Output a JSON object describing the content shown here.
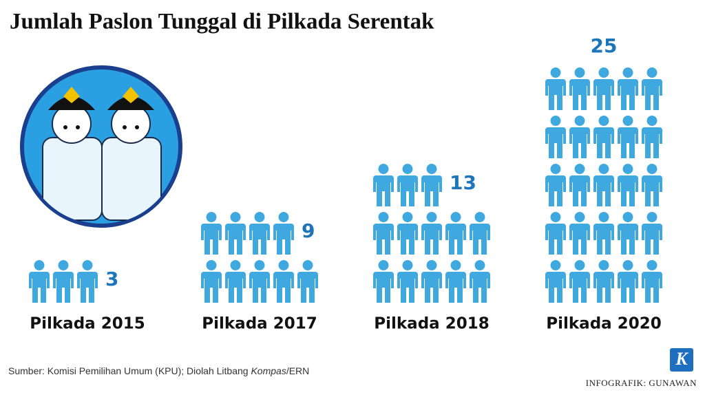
{
  "chart_data": {
    "type": "pictogram",
    "title": "Jumlah Paslon Tunggal di Pilkada Serentak",
    "categories": [
      "Pilkada 2015",
      "Pilkada 2017",
      "Pilkada 2018",
      "Pilkada 2020"
    ],
    "values": [
      3,
      9,
      13,
      25
    ],
    "color": "#3fa8df",
    "label_color": "#1c76b9",
    "icons_per_row": 5
  },
  "source": {
    "prefix": "Sumber: Komisi Pemilihan Umum (KPU); Diolah Litbang ",
    "publication": "Kompas",
    "suffix": "/ERN"
  },
  "credit": "INFOGRAFIK: GUNAWAN",
  "logo": "K"
}
